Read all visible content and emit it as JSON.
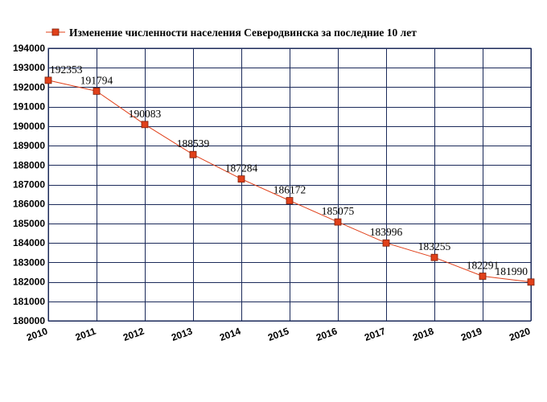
{
  "chart_data": {
    "type": "line",
    "title": "",
    "xlabel": "",
    "ylabel": "",
    "x": [
      2010,
      2011,
      2012,
      2013,
      2014,
      2015,
      2016,
      2017,
      2018,
      2019,
      2020
    ],
    "series": [
      {
        "name": "Изменение численности населения Северодвинска за последние 10 лет",
        "values": [
          192353,
          191794,
          190083,
          188539,
          187284,
          186172,
          185075,
          183996,
          183255,
          182291,
          181990
        ],
        "color": "#e0401a",
        "marker": "square"
      }
    ],
    "ylim": [
      180000,
      194000
    ],
    "ytick_step": 1000,
    "xlim": [
      2010,
      2020
    ],
    "grid": true,
    "grid_color": "#1b2a5a",
    "legend": "top-left",
    "data_labels": true
  }
}
